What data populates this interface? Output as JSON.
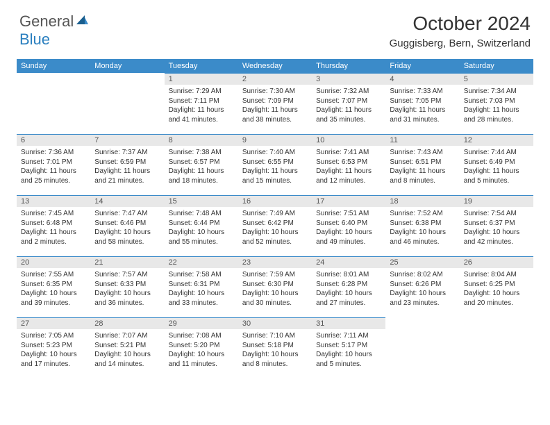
{
  "logo": {
    "text_general": "General",
    "text_blue": "Blue"
  },
  "title": "October 2024",
  "location": "Guggisberg, Bern, Switzerland",
  "header_bg": "#3b8bc9",
  "daynum_bg": "#e8e8e8",
  "day_labels": [
    "Sunday",
    "Monday",
    "Tuesday",
    "Wednesday",
    "Thursday",
    "Friday",
    "Saturday"
  ],
  "weeks": [
    [
      null,
      null,
      {
        "n": "1",
        "sr": "Sunrise: 7:29 AM",
        "ss": "Sunset: 7:11 PM",
        "d1": "Daylight: 11 hours",
        "d2": "and 41 minutes."
      },
      {
        "n": "2",
        "sr": "Sunrise: 7:30 AM",
        "ss": "Sunset: 7:09 PM",
        "d1": "Daylight: 11 hours",
        "d2": "and 38 minutes."
      },
      {
        "n": "3",
        "sr": "Sunrise: 7:32 AM",
        "ss": "Sunset: 7:07 PM",
        "d1": "Daylight: 11 hours",
        "d2": "and 35 minutes."
      },
      {
        "n": "4",
        "sr": "Sunrise: 7:33 AM",
        "ss": "Sunset: 7:05 PM",
        "d1": "Daylight: 11 hours",
        "d2": "and 31 minutes."
      },
      {
        "n": "5",
        "sr": "Sunrise: 7:34 AM",
        "ss": "Sunset: 7:03 PM",
        "d1": "Daylight: 11 hours",
        "d2": "and 28 minutes."
      }
    ],
    [
      {
        "n": "6",
        "sr": "Sunrise: 7:36 AM",
        "ss": "Sunset: 7:01 PM",
        "d1": "Daylight: 11 hours",
        "d2": "and 25 minutes."
      },
      {
        "n": "7",
        "sr": "Sunrise: 7:37 AM",
        "ss": "Sunset: 6:59 PM",
        "d1": "Daylight: 11 hours",
        "d2": "and 21 minutes."
      },
      {
        "n": "8",
        "sr": "Sunrise: 7:38 AM",
        "ss": "Sunset: 6:57 PM",
        "d1": "Daylight: 11 hours",
        "d2": "and 18 minutes."
      },
      {
        "n": "9",
        "sr": "Sunrise: 7:40 AM",
        "ss": "Sunset: 6:55 PM",
        "d1": "Daylight: 11 hours",
        "d2": "and 15 minutes."
      },
      {
        "n": "10",
        "sr": "Sunrise: 7:41 AM",
        "ss": "Sunset: 6:53 PM",
        "d1": "Daylight: 11 hours",
        "d2": "and 12 minutes."
      },
      {
        "n": "11",
        "sr": "Sunrise: 7:43 AM",
        "ss": "Sunset: 6:51 PM",
        "d1": "Daylight: 11 hours",
        "d2": "and 8 minutes."
      },
      {
        "n": "12",
        "sr": "Sunrise: 7:44 AM",
        "ss": "Sunset: 6:49 PM",
        "d1": "Daylight: 11 hours",
        "d2": "and 5 minutes."
      }
    ],
    [
      {
        "n": "13",
        "sr": "Sunrise: 7:45 AM",
        "ss": "Sunset: 6:48 PM",
        "d1": "Daylight: 11 hours",
        "d2": "and 2 minutes."
      },
      {
        "n": "14",
        "sr": "Sunrise: 7:47 AM",
        "ss": "Sunset: 6:46 PM",
        "d1": "Daylight: 10 hours",
        "d2": "and 58 minutes."
      },
      {
        "n": "15",
        "sr": "Sunrise: 7:48 AM",
        "ss": "Sunset: 6:44 PM",
        "d1": "Daylight: 10 hours",
        "d2": "and 55 minutes."
      },
      {
        "n": "16",
        "sr": "Sunrise: 7:49 AM",
        "ss": "Sunset: 6:42 PM",
        "d1": "Daylight: 10 hours",
        "d2": "and 52 minutes."
      },
      {
        "n": "17",
        "sr": "Sunrise: 7:51 AM",
        "ss": "Sunset: 6:40 PM",
        "d1": "Daylight: 10 hours",
        "d2": "and 49 minutes."
      },
      {
        "n": "18",
        "sr": "Sunrise: 7:52 AM",
        "ss": "Sunset: 6:38 PM",
        "d1": "Daylight: 10 hours",
        "d2": "and 46 minutes."
      },
      {
        "n": "19",
        "sr": "Sunrise: 7:54 AM",
        "ss": "Sunset: 6:37 PM",
        "d1": "Daylight: 10 hours",
        "d2": "and 42 minutes."
      }
    ],
    [
      {
        "n": "20",
        "sr": "Sunrise: 7:55 AM",
        "ss": "Sunset: 6:35 PM",
        "d1": "Daylight: 10 hours",
        "d2": "and 39 minutes."
      },
      {
        "n": "21",
        "sr": "Sunrise: 7:57 AM",
        "ss": "Sunset: 6:33 PM",
        "d1": "Daylight: 10 hours",
        "d2": "and 36 minutes."
      },
      {
        "n": "22",
        "sr": "Sunrise: 7:58 AM",
        "ss": "Sunset: 6:31 PM",
        "d1": "Daylight: 10 hours",
        "d2": "and 33 minutes."
      },
      {
        "n": "23",
        "sr": "Sunrise: 7:59 AM",
        "ss": "Sunset: 6:30 PM",
        "d1": "Daylight: 10 hours",
        "d2": "and 30 minutes."
      },
      {
        "n": "24",
        "sr": "Sunrise: 8:01 AM",
        "ss": "Sunset: 6:28 PM",
        "d1": "Daylight: 10 hours",
        "d2": "and 27 minutes."
      },
      {
        "n": "25",
        "sr": "Sunrise: 8:02 AM",
        "ss": "Sunset: 6:26 PM",
        "d1": "Daylight: 10 hours",
        "d2": "and 23 minutes."
      },
      {
        "n": "26",
        "sr": "Sunrise: 8:04 AM",
        "ss": "Sunset: 6:25 PM",
        "d1": "Daylight: 10 hours",
        "d2": "and 20 minutes."
      }
    ],
    [
      {
        "n": "27",
        "sr": "Sunrise: 7:05 AM",
        "ss": "Sunset: 5:23 PM",
        "d1": "Daylight: 10 hours",
        "d2": "and 17 minutes."
      },
      {
        "n": "28",
        "sr": "Sunrise: 7:07 AM",
        "ss": "Sunset: 5:21 PM",
        "d1": "Daylight: 10 hours",
        "d2": "and 14 minutes."
      },
      {
        "n": "29",
        "sr": "Sunrise: 7:08 AM",
        "ss": "Sunset: 5:20 PM",
        "d1": "Daylight: 10 hours",
        "d2": "and 11 minutes."
      },
      {
        "n": "30",
        "sr": "Sunrise: 7:10 AM",
        "ss": "Sunset: 5:18 PM",
        "d1": "Daylight: 10 hours",
        "d2": "and 8 minutes."
      },
      {
        "n": "31",
        "sr": "Sunrise: 7:11 AM",
        "ss": "Sunset: 5:17 PM",
        "d1": "Daylight: 10 hours",
        "d2": "and 5 minutes."
      },
      null,
      null
    ]
  ]
}
